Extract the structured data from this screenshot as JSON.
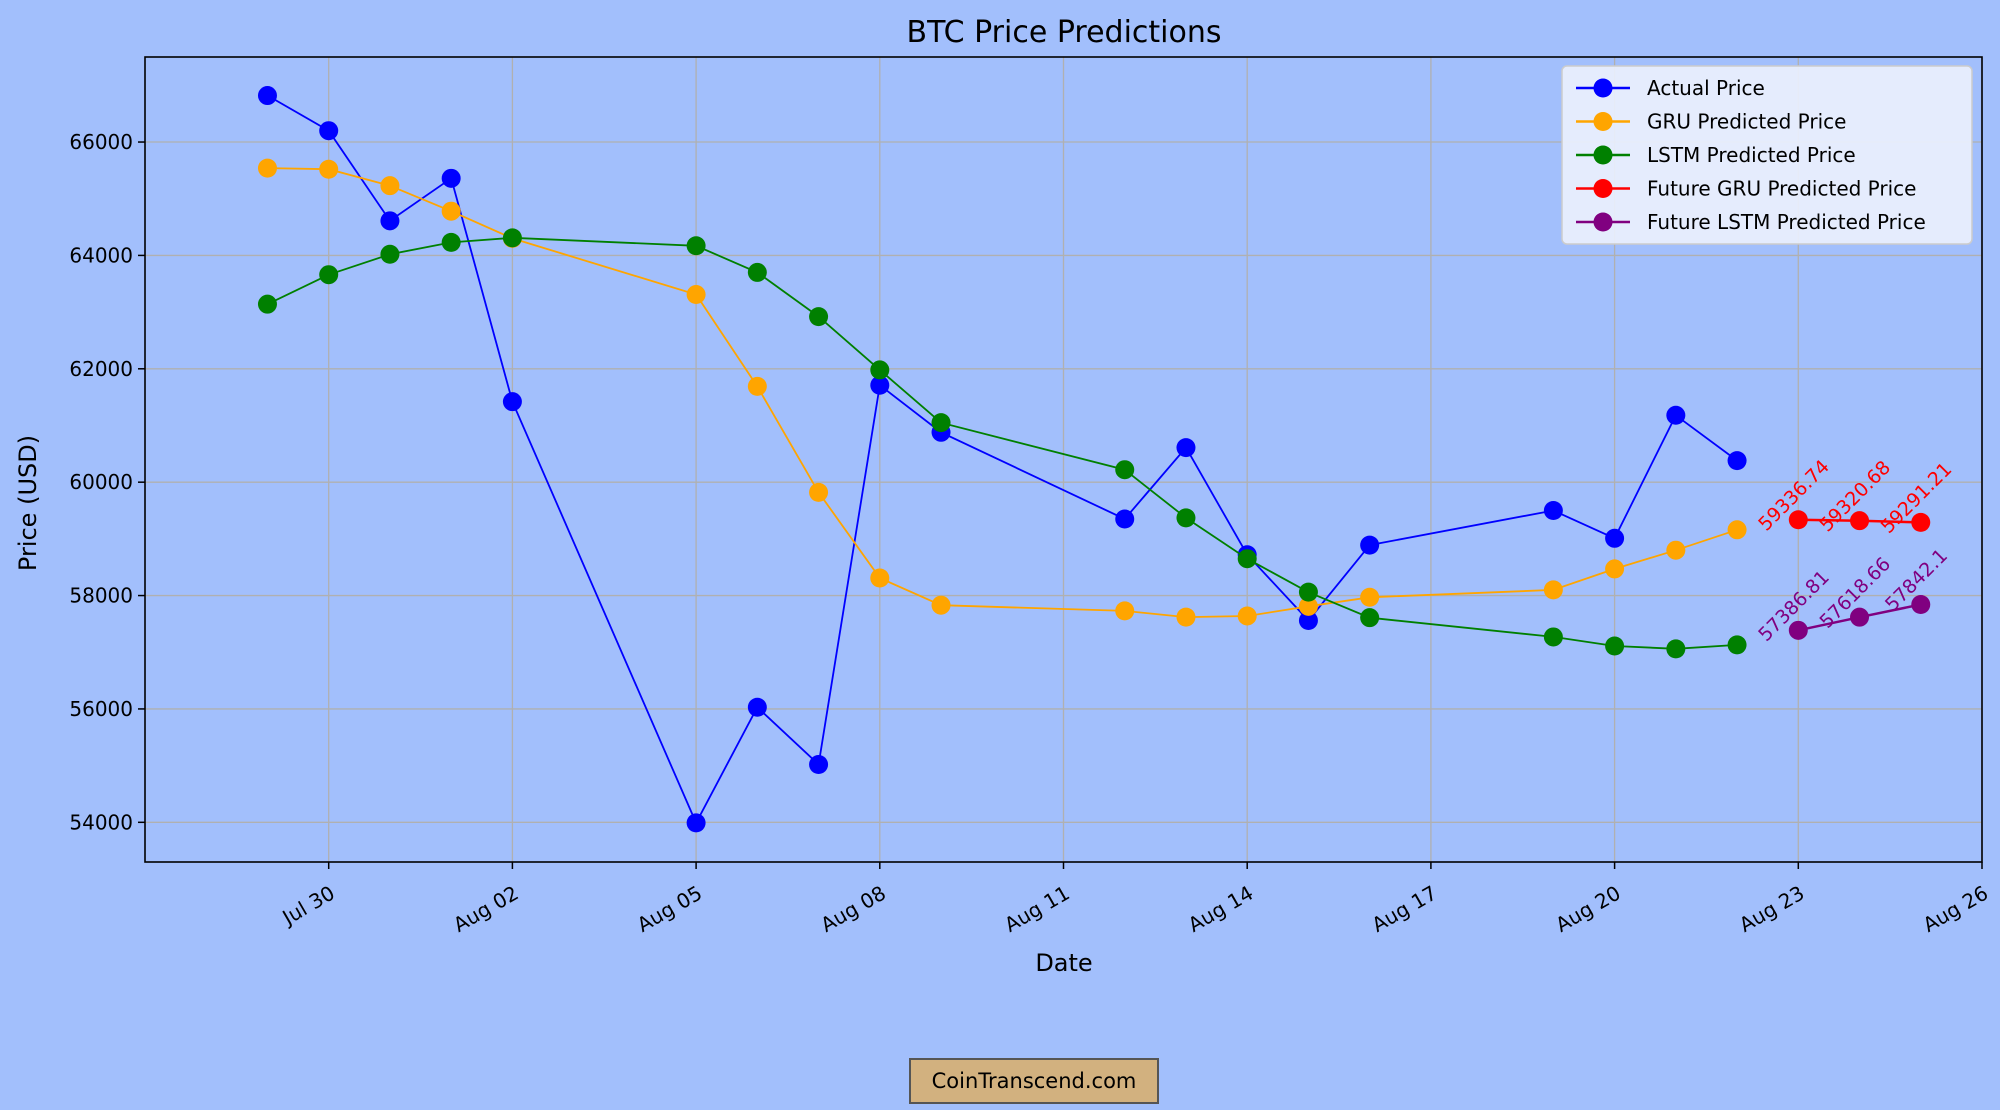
{
  "chart_data": {
    "type": "line",
    "title": "BTC Price Predictions",
    "xlabel": "Date",
    "ylabel": "Price (USD)",
    "xlim": [
      "2024-07-27",
      "2024-08-26"
    ],
    "ylim": [
      53300,
      67500
    ],
    "x_ticks": [
      "2024-07-30",
      "2024-08-02",
      "2024-08-05",
      "2024-08-08",
      "2024-08-11",
      "2024-08-14",
      "2024-08-17",
      "2024-08-20",
      "2024-08-23",
      "2024-08-26"
    ],
    "x_tick_labels": [
      "Jul 30",
      "Aug 02",
      "Aug 05",
      "Aug 08",
      "Aug 11",
      "Aug 14",
      "Aug 17",
      "Aug 20",
      "Aug 23",
      "Aug 26"
    ],
    "y_ticks": [
      54000,
      56000,
      58000,
      60000,
      62000,
      64000,
      66000
    ],
    "grid": true,
    "legend_position": "top-right",
    "series": [
      {
        "name": "Actual Price",
        "color": "#0000ff",
        "x": [
          "2024-07-29",
          "2024-07-30",
          "2024-07-31",
          "2024-08-01",
          "2024-08-02",
          "2024-08-05",
          "2024-08-06",
          "2024-08-07",
          "2024-08-08",
          "2024-08-09",
          "2024-08-12",
          "2024-08-13",
          "2024-08-14",
          "2024-08-15",
          "2024-08-16",
          "2024-08-19",
          "2024-08-20",
          "2024-08-21",
          "2024-08-22"
        ],
        "y": [
          66820,
          66200,
          64610,
          65360,
          61420,
          53990,
          56030,
          55020,
          61710,
          60880,
          59350,
          60610,
          58720,
          57560,
          58890,
          59500,
          59010,
          61180,
          60380
        ]
      },
      {
        "name": "GRU Predicted Price",
        "color": "#ffa500",
        "x": [
          "2024-07-29",
          "2024-07-30",
          "2024-07-31",
          "2024-08-01",
          "2024-08-02",
          "2024-08-05",
          "2024-08-06",
          "2024-08-07",
          "2024-08-08",
          "2024-08-09",
          "2024-08-12",
          "2024-08-13",
          "2024-08-14",
          "2024-08-15",
          "2024-08-16",
          "2024-08-19",
          "2024-08-20",
          "2024-08-21",
          "2024-08-22"
        ],
        "y": [
          65540,
          65520,
          65230,
          64780,
          64300,
          63310,
          61690,
          59820,
          58310,
          57830,
          57730,
          57620,
          57640,
          57810,
          57970,
          58100,
          58470,
          58800,
          59160
        ]
      },
      {
        "name": "LSTM Predicted Price",
        "color": "#008000",
        "x": [
          "2024-07-29",
          "2024-07-30",
          "2024-07-31",
          "2024-08-01",
          "2024-08-02",
          "2024-08-05",
          "2024-08-06",
          "2024-08-07",
          "2024-08-08",
          "2024-08-09",
          "2024-08-12",
          "2024-08-13",
          "2024-08-14",
          "2024-08-15",
          "2024-08-16",
          "2024-08-19",
          "2024-08-20",
          "2024-08-21",
          "2024-08-22"
        ],
        "y": [
          63140,
          63660,
          64020,
          64230,
          64310,
          64170,
          63700,
          62920,
          61980,
          61050,
          60220,
          59370,
          58650,
          58060,
          57610,
          57270,
          57110,
          57060,
          57130
        ]
      },
      {
        "name": "Future GRU Predicted Price",
        "color": "#ff0000",
        "x": [
          "2024-08-23",
          "2024-08-24",
          "2024-08-25"
        ],
        "y": [
          59336.74,
          59320.68,
          59291.21
        ],
        "labels": [
          "59336.74",
          "59320.68",
          "59291.21"
        ]
      },
      {
        "name": "Future LSTM Predicted Price",
        "color": "#800080",
        "x": [
          "2024-08-23",
          "2024-08-24",
          "2024-08-25"
        ],
        "y": [
          57386.81,
          57618.66,
          57842.1
        ],
        "labels": [
          "57386.81",
          "57618.66",
          "57842.1"
        ]
      }
    ]
  },
  "watermark": "CoinTranscend.com"
}
